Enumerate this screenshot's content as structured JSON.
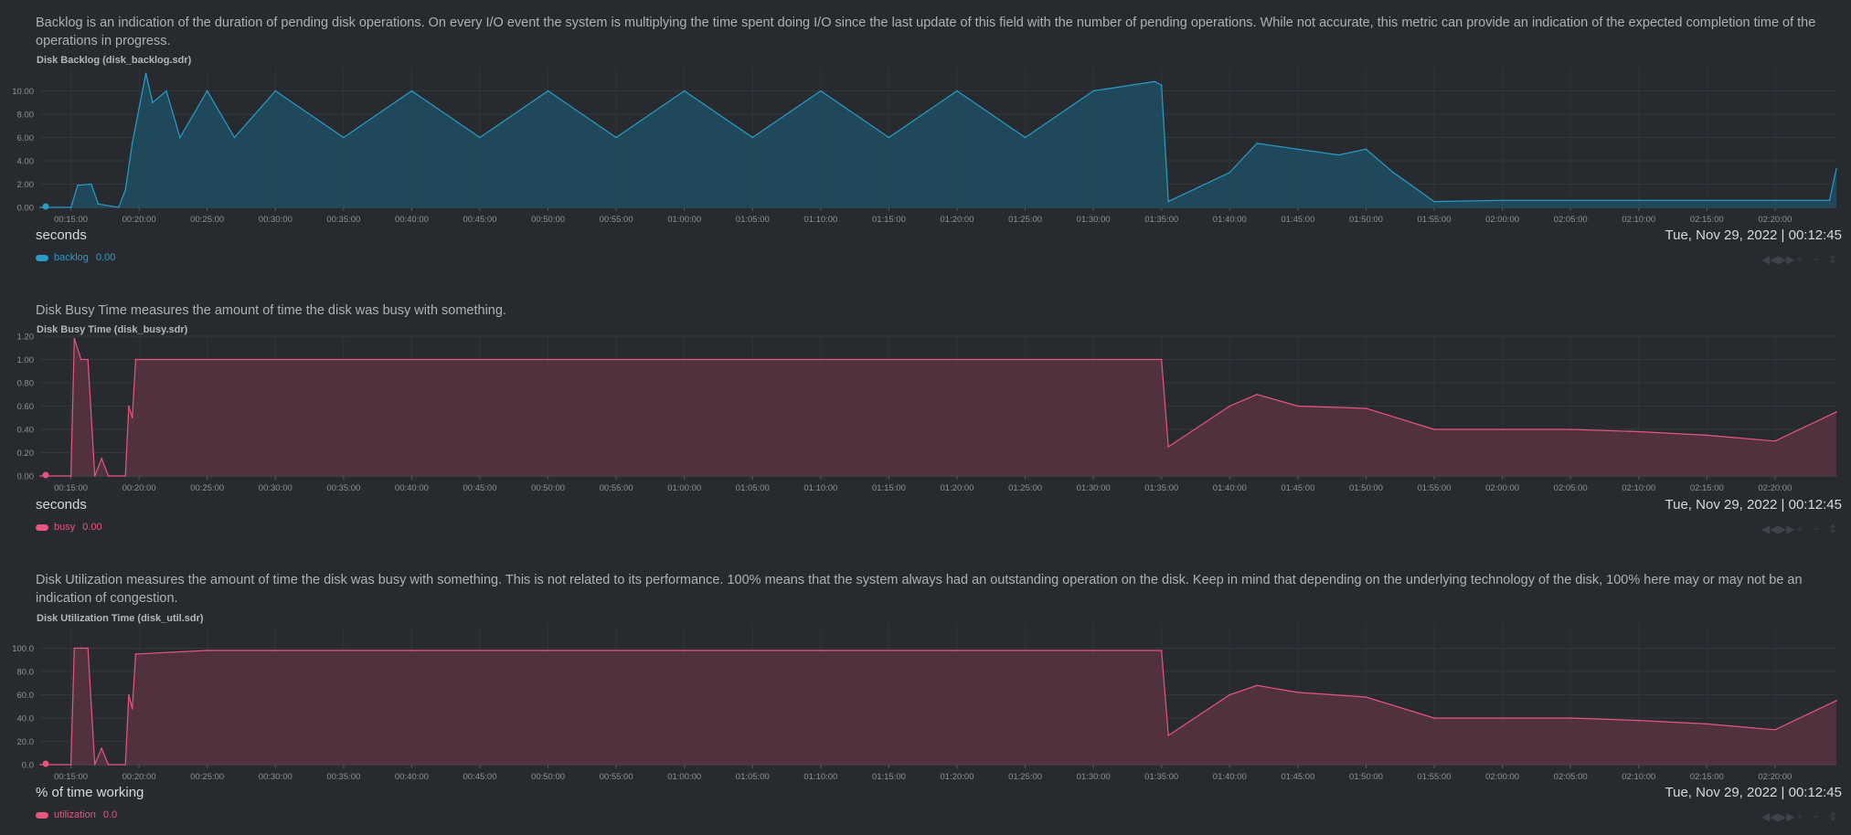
{
  "charts": [
    {
      "description": "Backlog is an indication of the duration of pending disk operations. On every I/O event the system is multiplying the time spent doing I/O since the last update of this field with the number of pending operations. While not accurate, this metric can provide an indication of the expected completion time of the operations in progress.",
      "title": "Disk Backlog (disk_backlog.sdr)",
      "units": "seconds",
      "timestamp": "Tue, Nov 29, 2022 | 00:12:45",
      "legend": {
        "label": "backlog",
        "value": "0.00"
      },
      "color": "#2a9cc8",
      "fill": "#1f4f61",
      "y_tick_labels": [
        "0.00",
        "2.00",
        "4.00",
        "6.00",
        "8.00",
        "10.00"
      ],
      "ylim": [
        0,
        12
      ],
      "toolbar": {
        "left": "◀◀",
        "right": "▶▶",
        "zoom_in": "+",
        "zoom_out": "−",
        "resize": "⇕"
      }
    },
    {
      "description": "Disk Busy Time measures the amount of time the disk was busy with something.",
      "title": "Disk Busy Time (disk_busy.sdr)",
      "units": "seconds",
      "timestamp": "Tue, Nov 29, 2022 | 00:12:45",
      "legend": {
        "label": "busy",
        "value": "0.00"
      },
      "color": "#e7557f",
      "fill": "#5a3341",
      "y_tick_labels": [
        "0.00",
        "0.20",
        "0.40",
        "0.60",
        "0.80",
        "1.00",
        "1.20"
      ],
      "ylim": [
        0,
        1.2
      ],
      "toolbar": {
        "left": "◀◀",
        "right": "▶▶",
        "zoom_in": "+",
        "zoom_out": "−",
        "resize": "⇕"
      }
    },
    {
      "description": "Disk Utilization measures the amount of time the disk was busy with something. This is not related to its performance. 100% means that the system always had an outstanding operation on the disk. Keep in mind that depending on the underlying technology of the disk, 100% here may or may not be an indication of congestion.",
      "title": "Disk Utilization Time (disk_util.sdr)",
      "units": "% of time working",
      "timestamp": "Tue, Nov 29, 2022 | 00:12:45",
      "legend": {
        "label": "utilization",
        "value": "0.0"
      },
      "color": "#e7557f",
      "fill": "#5a3341",
      "y_tick_labels": [
        "0.0",
        "20.0",
        "40.0",
        "60.0",
        "80.0",
        "100.0"
      ],
      "ylim": [
        0,
        120
      ],
      "toolbar": {
        "left": "◀◀",
        "right": "▶▶",
        "zoom_in": "+",
        "zoom_out": "−",
        "resize": "⇕"
      }
    }
  ],
  "x_tick_labels": [
    "00:15:00",
    "00:20:00",
    "00:25:00",
    "00:30:00",
    "00:35:00",
    "00:40:00",
    "00:45:00",
    "00:50:00",
    "00:55:00",
    "01:00:00",
    "01:05:00",
    "01:10:00",
    "01:15:00",
    "01:20:00",
    "01:25:00",
    "01:30:00",
    "01:35:00",
    "01:40:00",
    "01:45:00",
    "01:50:00",
    "01:55:00",
    "02:00:00",
    "02:05:00",
    "02:10:00",
    "02:15:00",
    "02:20:00"
  ],
  "chart_data": [
    {
      "type": "area",
      "title": "Disk Backlog (disk_backlog.sdr)",
      "ylabel": "seconds",
      "series_name": "backlog",
      "xlim": [
        "00:12:45",
        "02:24:30"
      ],
      "ylim": [
        0,
        12
      ],
      "points": [
        [
          "00:12:45",
          0
        ],
        [
          "00:15:00",
          0
        ],
        [
          "00:15:30",
          1.9
        ],
        [
          "00:16:30",
          2.0
        ],
        [
          "00:17:00",
          0.3
        ],
        [
          "00:18:30",
          0
        ],
        [
          "00:19:00",
          1.5
        ],
        [
          "00:19:30",
          5.5
        ],
        [
          "00:20:00",
          8.5
        ],
        [
          "00:20:30",
          11.5
        ],
        [
          "00:21:00",
          9.0
        ],
        [
          "00:22:00",
          10.0
        ],
        [
          "00:23:00",
          6.0
        ],
        [
          "00:25:00",
          10.0
        ],
        [
          "00:27:00",
          6.0
        ],
        [
          "00:30:00",
          10.0
        ],
        [
          "00:35:00",
          6.0
        ],
        [
          "00:40:00",
          10.0
        ],
        [
          "00:45:00",
          6.0
        ],
        [
          "00:50:00",
          10.0
        ],
        [
          "00:55:00",
          6.0
        ],
        [
          "01:00:00",
          10.0
        ],
        [
          "01:05:00",
          6.0
        ],
        [
          "01:10:00",
          10.0
        ],
        [
          "01:15:00",
          6.0
        ],
        [
          "01:20:00",
          10.0
        ],
        [
          "01:25:00",
          6.0
        ],
        [
          "01:30:00",
          10.0
        ],
        [
          "01:34:30",
          10.8
        ],
        [
          "01:35:00",
          10.5
        ],
        [
          "01:35:30",
          0.5
        ],
        [
          "01:40:00",
          3.0
        ],
        [
          "01:42:00",
          5.5
        ],
        [
          "01:45:00",
          5.0
        ],
        [
          "01:48:00",
          4.5
        ],
        [
          "01:50:00",
          5.0
        ],
        [
          "01:52:00",
          3.0
        ],
        [
          "01:55:00",
          0.5
        ],
        [
          "02:00:00",
          0.6
        ],
        [
          "02:10:00",
          0.6
        ],
        [
          "02:20:00",
          0.6
        ],
        [
          "02:24:00",
          0.6
        ],
        [
          "02:24:30",
          3.3
        ]
      ]
    },
    {
      "type": "area",
      "title": "Disk Busy Time (disk_busy.sdr)",
      "ylabel": "seconds",
      "series_name": "busy",
      "xlim": [
        "00:12:45",
        "02:24:30"
      ],
      "ylim": [
        0,
        1.2
      ],
      "points": [
        [
          "00:12:45",
          0
        ],
        [
          "00:15:00",
          0
        ],
        [
          "00:15:15",
          1.18
        ],
        [
          "00:15:45",
          1.0
        ],
        [
          "00:16:15",
          1.0
        ],
        [
          "00:16:45",
          0
        ],
        [
          "00:17:15",
          0.15
        ],
        [
          "00:17:45",
          0
        ],
        [
          "00:19:00",
          0
        ],
        [
          "00:19:15",
          0.6
        ],
        [
          "00:19:30",
          0.5
        ],
        [
          "00:19:45",
          1.0
        ],
        [
          "00:25:00",
          1.0
        ],
        [
          "00:30:00",
          1.0
        ],
        [
          "00:40:00",
          1.0
        ],
        [
          "00:50:00",
          1.0
        ],
        [
          "01:00:00",
          1.0
        ],
        [
          "01:10:00",
          1.0
        ],
        [
          "01:20:00",
          1.0
        ],
        [
          "01:30:00",
          1.0
        ],
        [
          "01:35:00",
          1.0
        ],
        [
          "01:35:30",
          0.25
        ],
        [
          "01:40:00",
          0.6
        ],
        [
          "01:42:00",
          0.7
        ],
        [
          "01:45:00",
          0.6
        ],
        [
          "01:50:00",
          0.58
        ],
        [
          "01:55:00",
          0.4
        ],
        [
          "02:00:00",
          0.4
        ],
        [
          "02:05:00",
          0.4
        ],
        [
          "02:10:00",
          0.38
        ],
        [
          "02:15:00",
          0.35
        ],
        [
          "02:20:00",
          0.3
        ],
        [
          "02:24:30",
          0.55
        ]
      ]
    },
    {
      "type": "area",
      "title": "Disk Utilization Time (disk_util.sdr)",
      "ylabel": "% of time working",
      "series_name": "utilization",
      "xlim": [
        "00:12:45",
        "02:24:30"
      ],
      "ylim": [
        0,
        120
      ],
      "points": [
        [
          "00:12:45",
          0
        ],
        [
          "00:15:00",
          0
        ],
        [
          "00:15:15",
          100
        ],
        [
          "00:15:45",
          100
        ],
        [
          "00:16:15",
          100
        ],
        [
          "00:16:45",
          0
        ],
        [
          "00:17:15",
          14
        ],
        [
          "00:17:45",
          0
        ],
        [
          "00:19:00",
          0
        ],
        [
          "00:19:15",
          60
        ],
        [
          "00:19:30",
          48
        ],
        [
          "00:19:45",
          95
        ],
        [
          "00:25:00",
          98
        ],
        [
          "00:30:00",
          98
        ],
        [
          "00:40:00",
          98
        ],
        [
          "00:50:00",
          98
        ],
        [
          "01:00:00",
          98
        ],
        [
          "01:10:00",
          98
        ],
        [
          "01:20:00",
          98
        ],
        [
          "01:30:00",
          98
        ],
        [
          "01:35:00",
          98
        ],
        [
          "01:35:30",
          25
        ],
        [
          "01:40:00",
          60
        ],
        [
          "01:42:00",
          68
        ],
        [
          "01:45:00",
          62
        ],
        [
          "01:50:00",
          58
        ],
        [
          "01:55:00",
          40
        ],
        [
          "02:00:00",
          40
        ],
        [
          "02:05:00",
          40
        ],
        [
          "02:10:00",
          38
        ],
        [
          "02:15:00",
          35
        ],
        [
          "02:20:00",
          30
        ],
        [
          "02:24:30",
          55
        ]
      ]
    }
  ]
}
